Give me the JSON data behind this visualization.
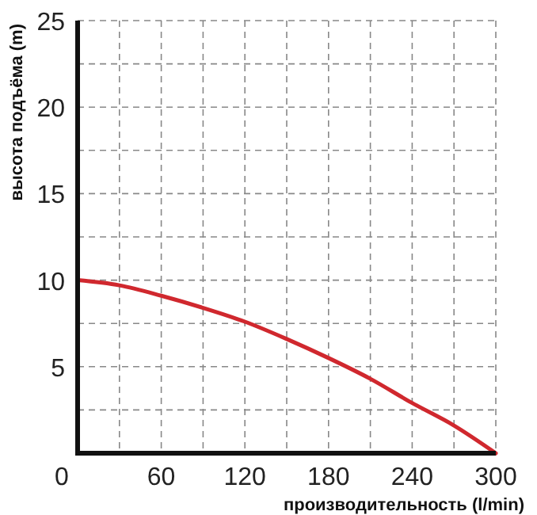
{
  "chart_data": {
    "type": "line",
    "xlabel": "производительность (l/min)",
    "ylabel": "высота подъёма (m)",
    "x": [
      0,
      30,
      60,
      90,
      120,
      150,
      180,
      210,
      240,
      270,
      300
    ],
    "series": [
      {
        "color": "#d0282e",
        "values": [
          10,
          9.7,
          9.1,
          8.4,
          7.6,
          6.6,
          5.5,
          4.3,
          2.9,
          1.6,
          0
        ]
      }
    ],
    "xlim": [
      0,
      300
    ],
    "ylim": [
      0,
      25
    ],
    "xticks": [
      0,
      {
        "value": 30,
        "label": null
      },
      60,
      {
        "value": 90,
        "label": null
      },
      120,
      {
        "value": 150,
        "label": null
      },
      180,
      {
        "value": 210,
        "label": null
      },
      240,
      {
        "value": 270,
        "label": null
      },
      300
    ],
    "yticks": [
      {
        "value": 2.5,
        "label": null
      },
      5,
      {
        "value": 7.5,
        "label": null
      },
      10,
      {
        "value": 12.5,
        "label": null
      },
      15,
      {
        "value": 17.5,
        "label": null
      },
      20,
      {
        "value": 22.5,
        "label": null
      },
      25
    ],
    "grid": true,
    "marker": "none",
    "line_style": "solid"
  }
}
